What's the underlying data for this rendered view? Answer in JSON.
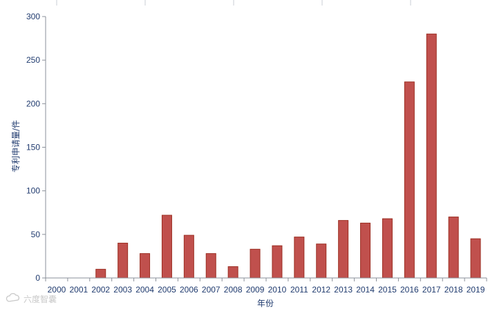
{
  "chart_data": {
    "type": "bar",
    "title": "",
    "xlabel": "年份",
    "ylabel": "专利申请量/件",
    "categories": [
      "2000",
      "2001",
      "2002",
      "2003",
      "2004",
      "2005",
      "2006",
      "2007",
      "2008",
      "2009",
      "2010",
      "2011",
      "2012",
      "2013",
      "2014",
      "2015",
      "2016",
      "2017",
      "2018",
      "2019"
    ],
    "values": [
      0,
      0,
      10,
      40,
      28,
      72,
      49,
      28,
      13,
      33,
      37,
      47,
      39,
      66,
      63,
      68,
      225,
      280,
      70,
      45
    ],
    "ylim": [
      0,
      300
    ],
    "yticks": [
      0,
      50,
      100,
      150,
      200,
      250,
      300
    ],
    "grid": false,
    "legend": "none",
    "bar_color": "#c0504d",
    "bar_edge_color": "#9c2f23",
    "axis_color": "#1f3a6e"
  },
  "watermark": {
    "text": "六度智囊",
    "icon": "cloud-logo-icon"
  }
}
